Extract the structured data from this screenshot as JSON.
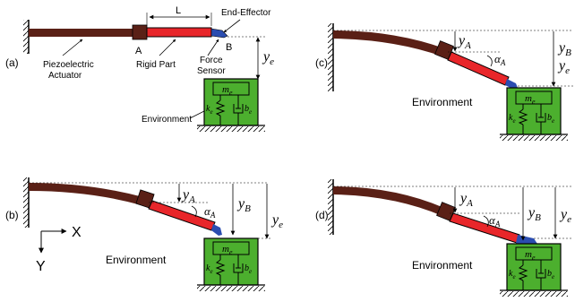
{
  "panels": {
    "a": {
      "tag": "(a)"
    },
    "b": {
      "tag": "(b)"
    },
    "c": {
      "tag": "(c)"
    },
    "d": {
      "tag": "(d)"
    }
  },
  "labels": {
    "length": "L",
    "end_effector": "End-Effector",
    "point_a": "A",
    "point_b": "B",
    "piezo_line1": "Piezoelectric",
    "piezo_line2": "Actuator",
    "rigid_part": "Rigid Part",
    "force_line1": "Force",
    "force_line2": "Sensor",
    "environment": "Environment",
    "axis_x": "X",
    "axis_y": "Y"
  },
  "math": {
    "y_e": "y",
    "y_e_sub": "e",
    "y_a": "y",
    "y_a_sub": "A",
    "y_b": "y",
    "y_b_sub": "B",
    "alpha": "α",
    "alpha_sub": "A",
    "m_e": "m",
    "m_e_sub": "e",
    "k_e": "k",
    "k_e_sub": "e",
    "b_e": "b",
    "b_e_sub": "e"
  },
  "colors": {
    "actuator": "#5a2016",
    "rigid_part": "#e8262a",
    "sensor": "#2b4db0",
    "environment": "#4caf2e",
    "ink": "#000000"
  }
}
